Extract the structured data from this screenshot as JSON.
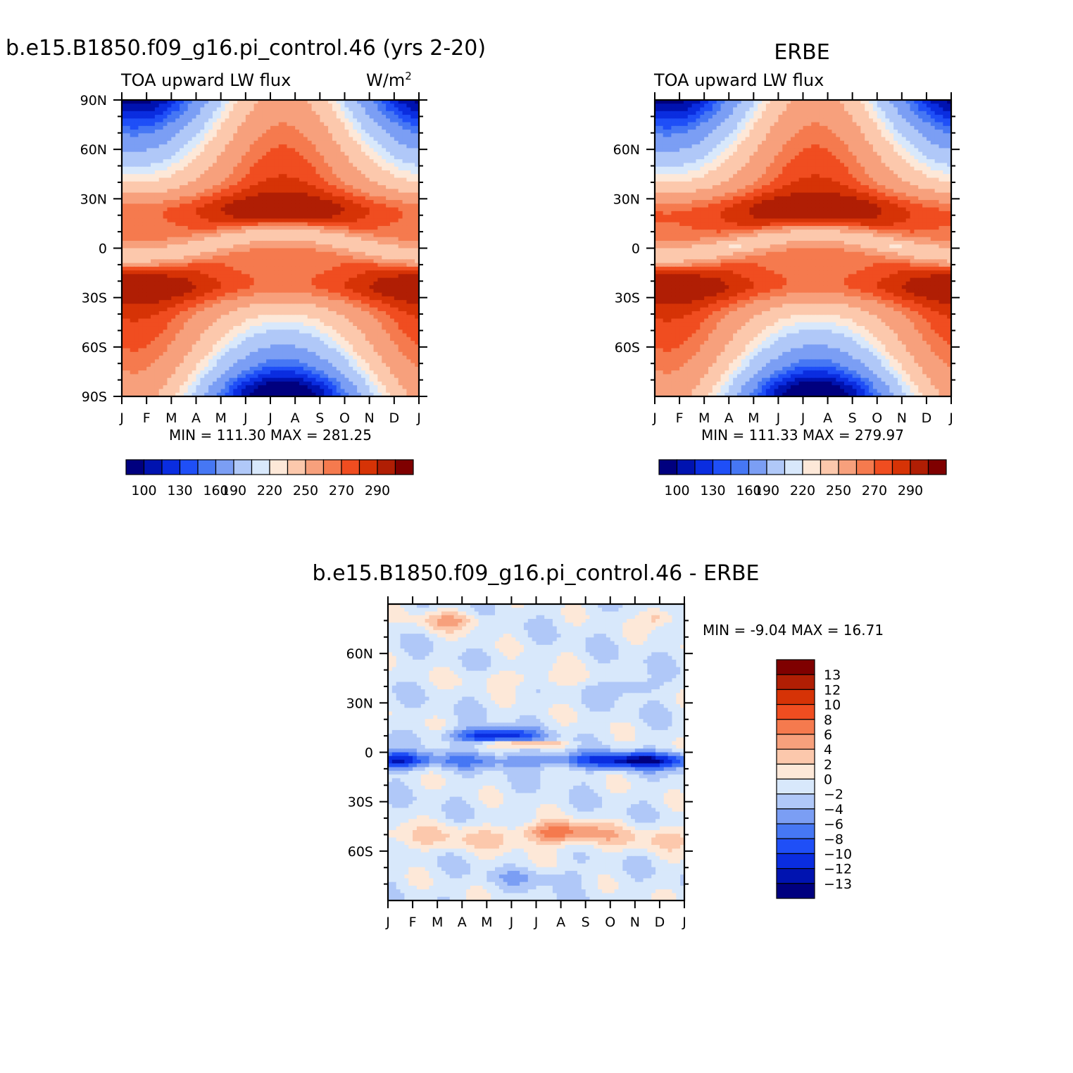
{
  "chart_data": [
    {
      "type": "heatmap",
      "id": "model",
      "title": "b.e15.B1850.f09_g16.pi_control.46 (yrs 2-20)",
      "left_label": "TOA upward LW flux",
      "units": "W/m",
      "units_sup": "2",
      "x_ticks": [
        "J",
        "F",
        "M",
        "A",
        "M",
        "J",
        "J",
        "A",
        "S",
        "O",
        "N",
        "D",
        "J"
      ],
      "y_ticks": [
        "90N",
        "60N",
        "30N",
        "0",
        "30S",
        "60S",
        "90S"
      ],
      "ylim": [
        -90,
        90
      ],
      "min_max": "MIN =  111.30  MAX =  281.25",
      "colorbar_labels": [
        "100",
        "130",
        "160",
        "190",
        "220",
        "250",
        "270",
        "290"
      ]
    },
    {
      "type": "heatmap",
      "id": "erbe",
      "title": "ERBE",
      "left_label": "TOA upward LW flux",
      "x_ticks": [
        "J",
        "F",
        "M",
        "A",
        "M",
        "J",
        "J",
        "A",
        "S",
        "O",
        "N",
        "D",
        "J"
      ],
      "y_ticks": [
        "60N",
        "30N",
        "0",
        "30S",
        "60S"
      ],
      "ylim": [
        -90,
        90
      ],
      "min_max": "MIN =  111.33  MAX =  279.97",
      "colorbar_labels": [
        "100",
        "130",
        "160",
        "190",
        "220",
        "250",
        "270",
        "290"
      ]
    },
    {
      "type": "heatmap",
      "id": "diff",
      "title": "b.e15.B1850.f09_g16.pi_control.46 - ERBE",
      "x_ticks": [
        "J",
        "F",
        "M",
        "A",
        "M",
        "J",
        "J",
        "A",
        "S",
        "O",
        "N",
        "D",
        "J"
      ],
      "y_ticks": [
        "60N",
        "30N",
        "0",
        "30S",
        "60S"
      ],
      "ylim": [
        -90,
        90
      ],
      "min_max": "MIN =   -9.04  MAX =   16.71",
      "colorbar_labels": [
        "13",
        "12",
        "10",
        "8",
        "6",
        "4",
        "2",
        "0",
        "-2",
        "-4",
        "-6",
        "-8",
        "-10",
        "-12",
        "-13"
      ]
    }
  ],
  "colors": {
    "flux_scale": [
      "#00007f",
      "#0013b0",
      "#0a2de0",
      "#1f4ff7",
      "#4677f4",
      "#7b9ef4",
      "#b0c8f8",
      "#d8e8fb",
      "#fde8d8",
      "#fcc8ac",
      "#f7a07c",
      "#f57a4e",
      "#f04d20",
      "#d63306",
      "#b01e04",
      "#7f0000"
    ],
    "diff_scale": [
      "#7f0000",
      "#b01e04",
      "#d63306",
      "#f04d20",
      "#f57a4e",
      "#f7a07c",
      "#fcc8ac",
      "#fde8d8",
      "#d8e8fb",
      "#b0c8f8",
      "#7b9ef4",
      "#4677f4",
      "#1f4ff7",
      "#0a2de0",
      "#0013b0",
      "#00007f"
    ]
  }
}
